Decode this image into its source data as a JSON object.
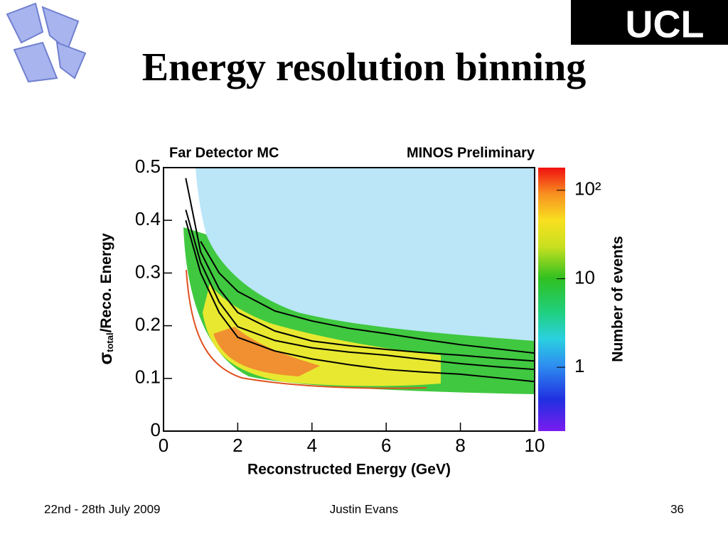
{
  "slide": {
    "title": "Energy resolution binning",
    "logo": "UCL",
    "footer": {
      "date": "22nd - 28th July 2009",
      "author": "Justin Evans",
      "page": "36"
    }
  },
  "chart_data": {
    "type": "line",
    "annotations": [
      "Far Detector MC",
      "MINOS Preliminary"
    ],
    "x_label": "Reconstructed Energy (GeV)",
    "y_label": {
      "symbol": "σ",
      "subscript": "total",
      "text": "/Reco. Energy"
    },
    "x": [
      0.6,
      1,
      1.5,
      2,
      3,
      4,
      5,
      6,
      7,
      8,
      9,
      10
    ],
    "series": [
      {
        "color": "#000000",
        "values": [
          null,
          0.36,
          0.3,
          0.265,
          0.228,
          0.209,
          0.195,
          0.185,
          0.174,
          0.164,
          0.156,
          0.148
        ]
      },
      {
        "color": "#000000",
        "values": [
          0.48,
          0.34,
          0.27,
          0.225,
          0.19,
          0.171,
          0.162,
          0.155,
          0.149,
          0.144,
          0.138,
          0.133
        ]
      },
      {
        "color": "#000000",
        "values": [
          0.42,
          0.32,
          0.245,
          0.198,
          0.172,
          0.158,
          0.15,
          0.144,
          0.136,
          0.128,
          0.122,
          0.117
        ]
      },
      {
        "color": "#000000",
        "values": [
          0.4,
          0.3,
          0.225,
          0.178,
          0.152,
          0.137,
          0.126,
          0.117,
          0.112,
          0.108,
          0.101,
          0.094
        ]
      }
    ],
    "xlim": [
      0,
      10
    ],
    "xticks": [
      0,
      2,
      4,
      6,
      8,
      10
    ],
    "ylim": [
      0,
      0.5
    ],
    "yticks": [
      0,
      0.1,
      0.2,
      0.3,
      0.4,
      0.5
    ],
    "colorbar": {
      "label": "Number of events",
      "log": true,
      "zlim": [
        0.19,
        180
      ],
      "ticks": [
        1,
        10,
        {
          "value": 100,
          "label": "10²"
        }
      ]
    }
  }
}
